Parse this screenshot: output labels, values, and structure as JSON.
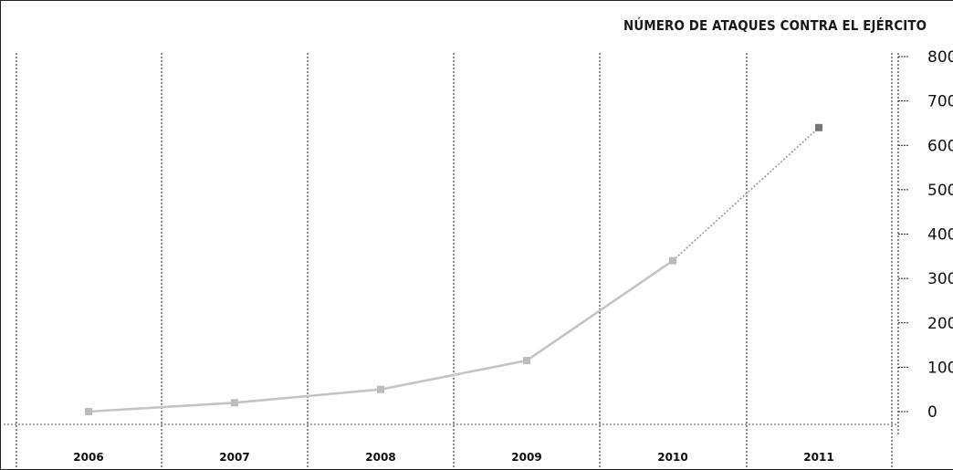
{
  "chart_data": {
    "type": "line",
    "title": "NÚMERO DE ATAQUES CONTRA EL EJÉRCITO",
    "categories": [
      "2006",
      "2007",
      "2008",
      "2009",
      "2010",
      "2011"
    ],
    "series": [
      {
        "values": [
          0,
          20,
          50,
          115,
          340,
          640
        ]
      }
    ],
    "yticks": [
      "0",
      "100",
      "200",
      "300",
      "400",
      "500",
      "600",
      "700",
      "800"
    ],
    "ylim": [
      0,
      800
    ],
    "projected_from_index": 4,
    "grid": true,
    "yaxis_position": "right",
    "colors": {
      "line": "#c4c4c4",
      "marker": "#bcbcbc",
      "last_marker": "#777777",
      "grid": "#222222",
      "text": "#111111"
    }
  }
}
